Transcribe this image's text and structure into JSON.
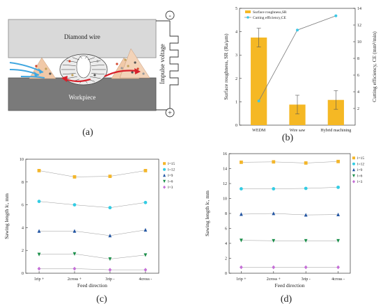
{
  "panels": {
    "a": "(a)",
    "b": "(b)",
    "c": "(c)",
    "d": "(d)"
  },
  "diagram": {
    "wire_label": "Diamond wire",
    "workpiece_label": "Workpiece",
    "voltage_label": "Impulse voltage",
    "minus_symbol": "-",
    "plus_symbol": "+",
    "colors": {
      "wire": "#d9d9d9",
      "workpiece": "#7a7a7a",
      "spark": "#f1c9a8",
      "flow": "#41a7e0",
      "arrow": "#d8202a"
    }
  },
  "chart_data": [
    {
      "id": "b",
      "type": "bar+line",
      "categories": [
        "WEDM",
        "Wire saw",
        "Hybrid machining"
      ],
      "ylabel": "Surface roughness, SR (Ra/μm)",
      "ylabel_right": "Cutting efficiency, CE (mm²/min)",
      "ylim": [
        0,
        5
      ],
      "yticks": [
        0,
        1,
        2,
        3,
        4,
        5
      ],
      "ylim_right": [
        0,
        14
      ],
      "yticks_right": [
        2,
        4,
        6,
        8,
        10,
        12,
        14
      ],
      "legend": [
        "Surface roughness,SR",
        "Cutting efficiency,CE"
      ],
      "legend_placement": "top-left",
      "bar_color": "#f5b824",
      "line_color": "#7a7a7a",
      "marker_color": "#3cc8e6",
      "bars": {
        "values": [
          3.75,
          0.88,
          1.08
        ],
        "errors": [
          0.4,
          0.4,
          0.4
        ]
      },
      "line": {
        "values": [
          2.9,
          11.4,
          13.1
        ]
      }
    },
    {
      "id": "c",
      "type": "line",
      "categories": [
        "1rip +",
        "2cross +",
        "3rip -",
        "4cross -"
      ],
      "xlabel": "Feed direction",
      "ylabel": "Sawing length lc, mm",
      "ylim": [
        0,
        10
      ],
      "yticks": [
        0,
        2,
        4,
        6,
        8,
        10
      ],
      "legend_placement": "top-right",
      "series": [
        {
          "name": "l=15",
          "values": [
            9.0,
            8.45,
            8.5,
            9.0
          ],
          "color": "#f3b62a",
          "marker": "square"
        },
        {
          "name": "l=12",
          "values": [
            6.3,
            6.0,
            5.75,
            6.2
          ],
          "color": "#33cce3",
          "marker": "circle"
        },
        {
          "name": "l=9",
          "values": [
            3.7,
            3.7,
            3.3,
            3.8
          ],
          "color": "#2255a3",
          "marker": "triangle-up"
        },
        {
          "name": "l=6",
          "values": [
            1.65,
            1.7,
            1.25,
            1.6
          ],
          "color": "#1a8f4a",
          "marker": "triangle-down"
        },
        {
          "name": "l=3",
          "values": [
            0.4,
            0.4,
            0.3,
            0.3
          ],
          "color": "#c46fd6",
          "marker": "diamond"
        }
      ]
    },
    {
      "id": "d",
      "type": "line",
      "categories": [
        "1rip +",
        "2cross +",
        "3rip -",
        "4cross -"
      ],
      "xlabel": "Feed direction",
      "ylabel": "Sawing length lc, mm",
      "ylim": [
        0,
        16
      ],
      "yticks": [
        0,
        2,
        4,
        6,
        8,
        10,
        12,
        14,
        16
      ],
      "legend_placement": "top-right",
      "series": [
        {
          "name": "l=15",
          "values": [
            14.85,
            14.9,
            14.75,
            14.95
          ],
          "color": "#f3b62a",
          "marker": "square"
        },
        {
          "name": "l=12",
          "values": [
            11.3,
            11.3,
            11.35,
            11.5
          ],
          "color": "#33cce3",
          "marker": "circle"
        },
        {
          "name": "l=9",
          "values": [
            7.9,
            8.0,
            7.8,
            7.85
          ],
          "color": "#2255a3",
          "marker": "triangle-up"
        },
        {
          "name": "l=6",
          "values": [
            4.4,
            4.35,
            4.35,
            4.35
          ],
          "color": "#1a8f4a",
          "marker": "triangle-down"
        },
        {
          "name": "l=3",
          "values": [
            0.8,
            0.8,
            0.8,
            0.8
          ],
          "color": "#c46fd6",
          "marker": "diamond"
        }
      ]
    }
  ]
}
